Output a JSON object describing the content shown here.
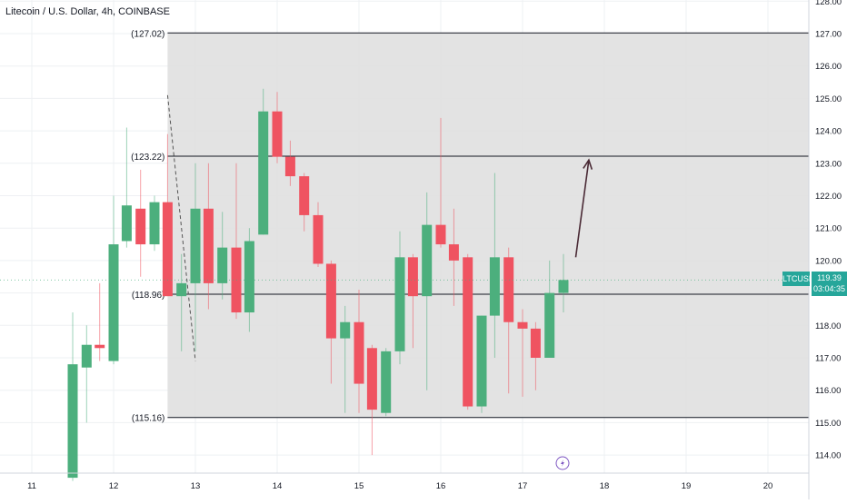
{
  "header": {
    "symbol": "Litecoin / U.S. Dollar, 4h, COINBASE"
  },
  "price_tag": {
    "ticker": "LTCUSD",
    "price": "119.39",
    "countdown": "03:04:35"
  },
  "colors": {
    "up": "#4caf7d",
    "down": "#ef5361",
    "range_fill": "#e0e0e0",
    "line": "#131722",
    "arrow": "#4a2a35",
    "marker": "#7e57c2"
  },
  "icons": {
    "event_marker": "lightning-marker-icon"
  },
  "chart_data": {
    "type": "candlestick",
    "title": "Litecoin / U.S. Dollar, 4h, COINBASE",
    "ylim": [
      113.4,
      128
    ],
    "yticks": [
      "114.00",
      "115.00",
      "116.00",
      "117.00",
      "118.00",
      "119.00",
      "120.00",
      "121.00",
      "122.00",
      "123.00",
      "124.00",
      "125.00",
      "126.00",
      "127.00",
      "128.00"
    ],
    "xticks": [
      "11",
      "12",
      "13",
      "14",
      "15",
      "16",
      "17",
      "18",
      "19",
      "20"
    ],
    "levels": [
      {
        "label": "(127.02)",
        "value": 127.02
      },
      {
        "label": "(123.22)",
        "value": 123.22
      },
      {
        "label": "(118.96)",
        "value": 118.96
      },
      {
        "label": "(115.16)",
        "value": 115.16
      }
    ],
    "range_box": {
      "top": 127.02,
      "bottom": 115.16,
      "start_day": 12.66
    },
    "arrow": {
      "from": {
        "day": 17.65,
        "price": 120.1
      },
      "to": {
        "day": 17.81,
        "price": 123.1
      }
    },
    "dashed_line": {
      "from": {
        "day": 12.66,
        "price": 125.1
      },
      "to": {
        "day": 13.0,
        "price": 116.9
      }
    },
    "candles": [
      {
        "day": 11.5,
        "o": 113.3,
        "h": 118.4,
        "l": 113.2,
        "c": 116.8
      },
      {
        "day": 11.67,
        "o": 116.7,
        "h": 118.0,
        "l": 115.0,
        "c": 117.4
      },
      {
        "day": 11.83,
        "o": 117.4,
        "h": 119.3,
        "l": 116.9,
        "c": 117.3
      },
      {
        "day": 12.0,
        "o": 116.9,
        "h": 122.0,
        "l": 116.8,
        "c": 120.5
      },
      {
        "day": 12.16,
        "o": 120.6,
        "h": 124.1,
        "l": 120.4,
        "c": 121.7
      },
      {
        "day": 12.33,
        "o": 121.6,
        "h": 122.8,
        "l": 119.5,
        "c": 120.5
      },
      {
        "day": 12.5,
        "o": 120.5,
        "h": 122.0,
        "l": 120.3,
        "c": 121.8
      },
      {
        "day": 12.66,
        "o": 121.8,
        "h": 123.9,
        "l": 118.9,
        "c": 118.9
      },
      {
        "day": 12.83,
        "o": 118.9,
        "h": 120.2,
        "l": 117.2,
        "c": 119.3
      },
      {
        "day": 13.0,
        "o": 119.3,
        "h": 123.0,
        "l": 117.2,
        "c": 121.6
      },
      {
        "day": 13.16,
        "o": 121.6,
        "h": 123.0,
        "l": 118.5,
        "c": 119.3
      },
      {
        "day": 13.33,
        "o": 119.3,
        "h": 121.5,
        "l": 118.8,
        "c": 120.4
      },
      {
        "day": 13.5,
        "o": 120.4,
        "h": 123.0,
        "l": 118.2,
        "c": 118.4
      },
      {
        "day": 13.66,
        "o": 118.4,
        "h": 121.0,
        "l": 117.8,
        "c": 120.6
      },
      {
        "day": 13.83,
        "o": 120.8,
        "h": 125.3,
        "l": 120.8,
        "c": 124.6
      },
      {
        "day": 14.0,
        "o": 124.6,
        "h": 125.2,
        "l": 123.0,
        "c": 123.2
      },
      {
        "day": 14.16,
        "o": 123.2,
        "h": 123.7,
        "l": 122.3,
        "c": 122.6
      },
      {
        "day": 14.33,
        "o": 122.6,
        "h": 122.7,
        "l": 120.9,
        "c": 121.4
      },
      {
        "day": 14.5,
        "o": 121.4,
        "h": 121.8,
        "l": 119.8,
        "c": 119.9
      },
      {
        "day": 14.66,
        "o": 119.9,
        "h": 120.0,
        "l": 116.2,
        "c": 117.6
      },
      {
        "day": 14.83,
        "o": 117.6,
        "h": 118.6,
        "l": 115.3,
        "c": 118.1
      },
      {
        "day": 15.0,
        "o": 118.1,
        "h": 119.1,
        "l": 115.3,
        "c": 116.2
      },
      {
        "day": 15.16,
        "o": 117.3,
        "h": 117.4,
        "l": 114.0,
        "c": 115.4
      },
      {
        "day": 15.33,
        "o": 115.3,
        "h": 117.3,
        "l": 115.2,
        "c": 117.2
      },
      {
        "day": 15.5,
        "o": 117.2,
        "h": 120.9,
        "l": 116.8,
        "c": 120.1
      },
      {
        "day": 15.66,
        "o": 120.1,
        "h": 120.2,
        "l": 117.3,
        "c": 118.9
      },
      {
        "day": 15.83,
        "o": 118.9,
        "h": 122.1,
        "l": 116.0,
        "c": 121.1
      },
      {
        "day": 16.0,
        "o": 121.1,
        "h": 124.4,
        "l": 120.4,
        "c": 120.5
      },
      {
        "day": 16.16,
        "o": 120.5,
        "h": 121.6,
        "l": 118.6,
        "c": 120.0
      },
      {
        "day": 16.33,
        "o": 120.1,
        "h": 120.2,
        "l": 115.4,
        "c": 115.5
      },
      {
        "day": 16.5,
        "o": 115.5,
        "h": 118.3,
        "l": 115.3,
        "c": 118.3
      },
      {
        "day": 16.66,
        "o": 118.3,
        "h": 122.7,
        "l": 117.0,
        "c": 120.1
      },
      {
        "day": 16.83,
        "o": 120.1,
        "h": 120.4,
        "l": 115.9,
        "c": 118.1
      },
      {
        "day": 17.0,
        "o": 118.1,
        "h": 118.5,
        "l": 115.8,
        "c": 117.9
      },
      {
        "day": 17.16,
        "o": 117.9,
        "h": 118.1,
        "l": 116.0,
        "c": 117.0
      },
      {
        "day": 17.33,
        "o": 117.0,
        "h": 120.0,
        "l": 117.0,
        "c": 119.0
      },
      {
        "day": 17.5,
        "o": 119.0,
        "h": 120.2,
        "l": 118.4,
        "c": 119.4
      }
    ]
  }
}
